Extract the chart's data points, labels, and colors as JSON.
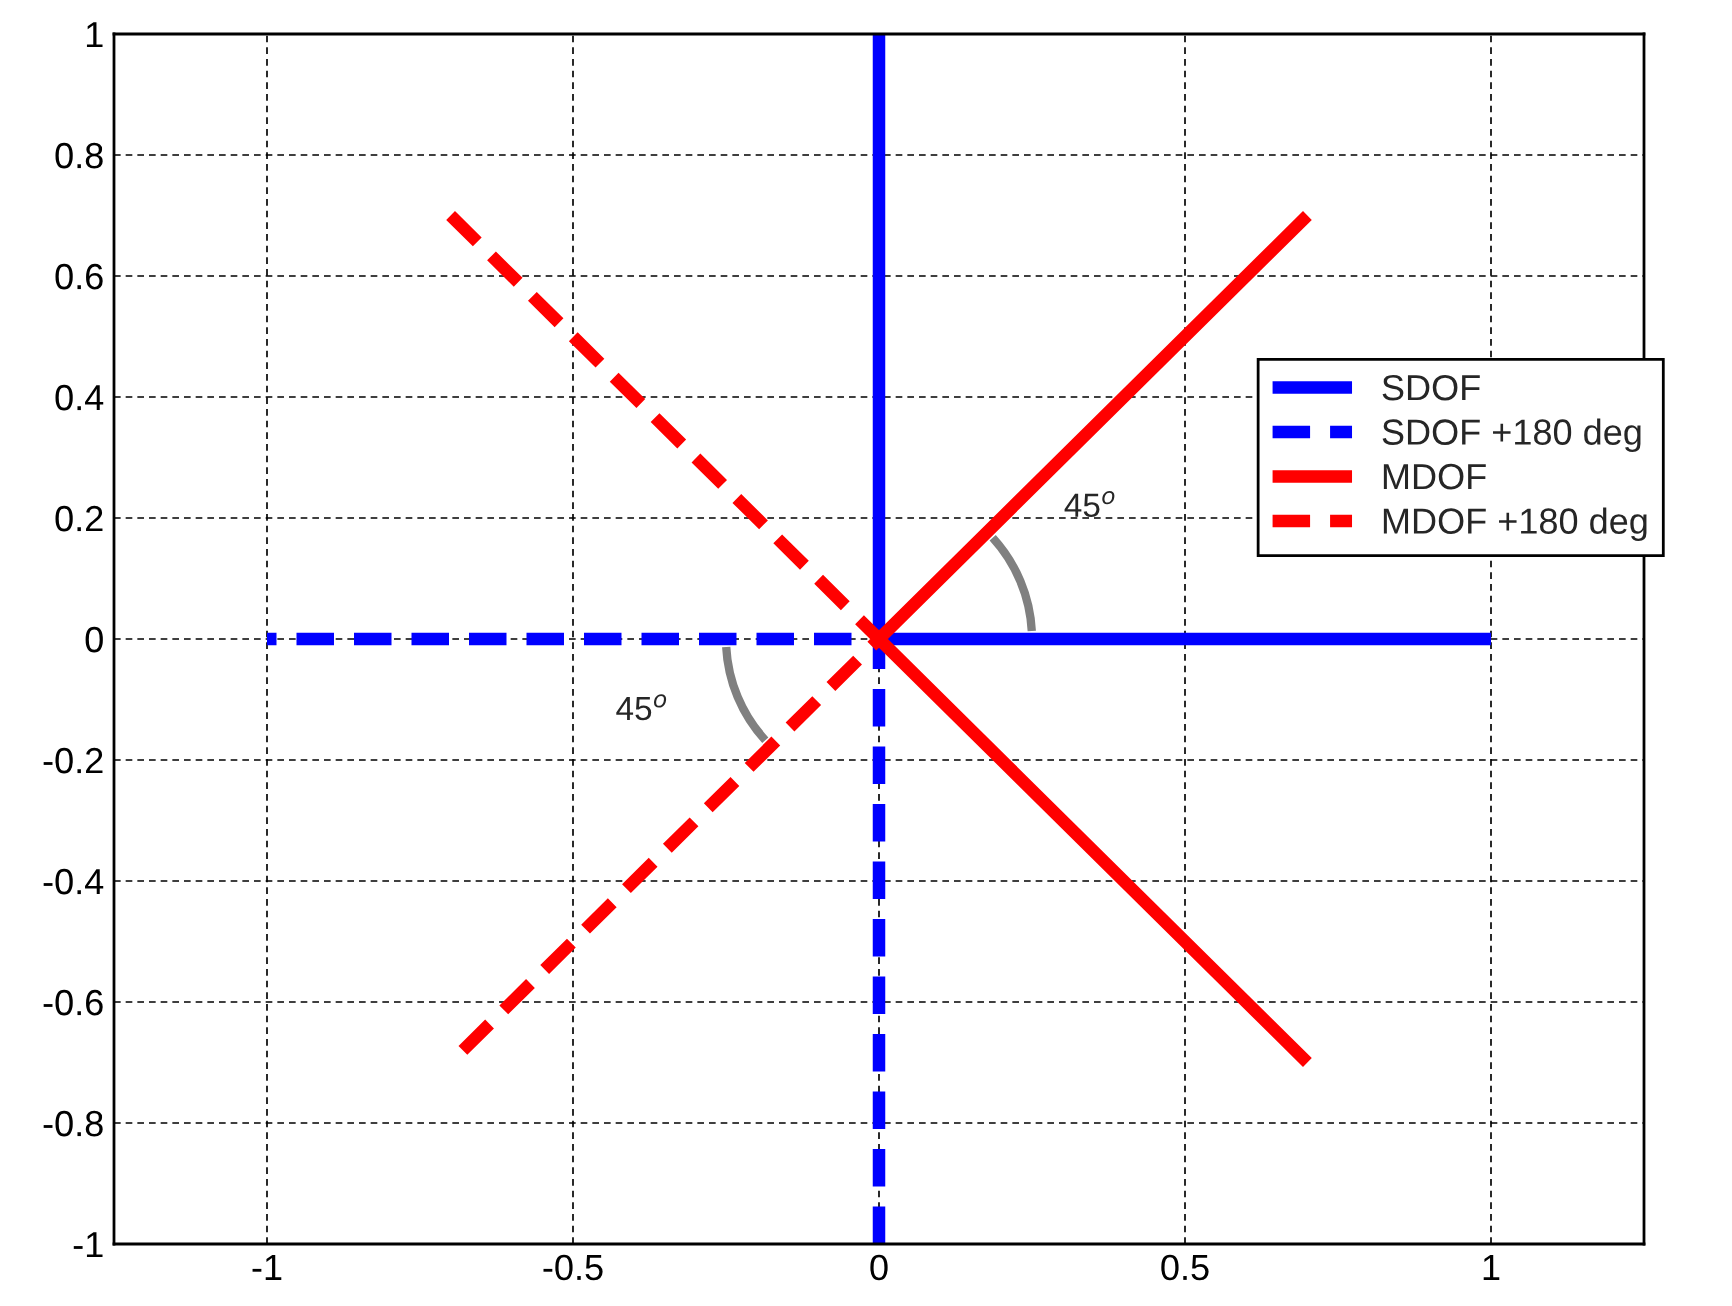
{
  "chart_data": {
    "type": "line",
    "xlim": [
      -1.25,
      1.25
    ],
    "ylim": [
      -1,
      1
    ],
    "xticks": [
      -1,
      -0.5,
      0,
      0.5,
      1
    ],
    "yticks": [
      -1,
      -0.8,
      -0.6,
      -0.4,
      -0.2,
      0,
      0.2,
      0.4,
      0.6,
      0.8,
      1
    ],
    "grid": true,
    "legend": "right",
    "marker": "none",
    "series": [
      {
        "name": "SDOF",
        "color": "#0000ff",
        "line_style": "solid",
        "x": [
          0,
          0,
          1
        ],
        "values": [
          1,
          0,
          0
        ]
      },
      {
        "name": "SDOF +180 deg",
        "color": "#0000ff",
        "line_style": "dashed",
        "x": [
          0,
          0,
          -1
        ],
        "values": [
          -1,
          0,
          0
        ]
      },
      {
        "name": "MDOF",
        "color": "#ff0000",
        "line_style": "solid",
        "x": [
          0.7,
          0,
          0.7
        ],
        "values": [
          0.7,
          0,
          -0.7
        ]
      },
      {
        "name": "MDOF +180 deg",
        "color": "#ff0000",
        "line_style": "dashed",
        "x": [
          -0.7,
          0,
          -0.7
        ],
        "values": [
          0.7,
          0,
          -0.7
        ]
      }
    ],
    "annotations": [
      "45$^{o}$",
      "45$^{o}$"
    ]
  }
}
